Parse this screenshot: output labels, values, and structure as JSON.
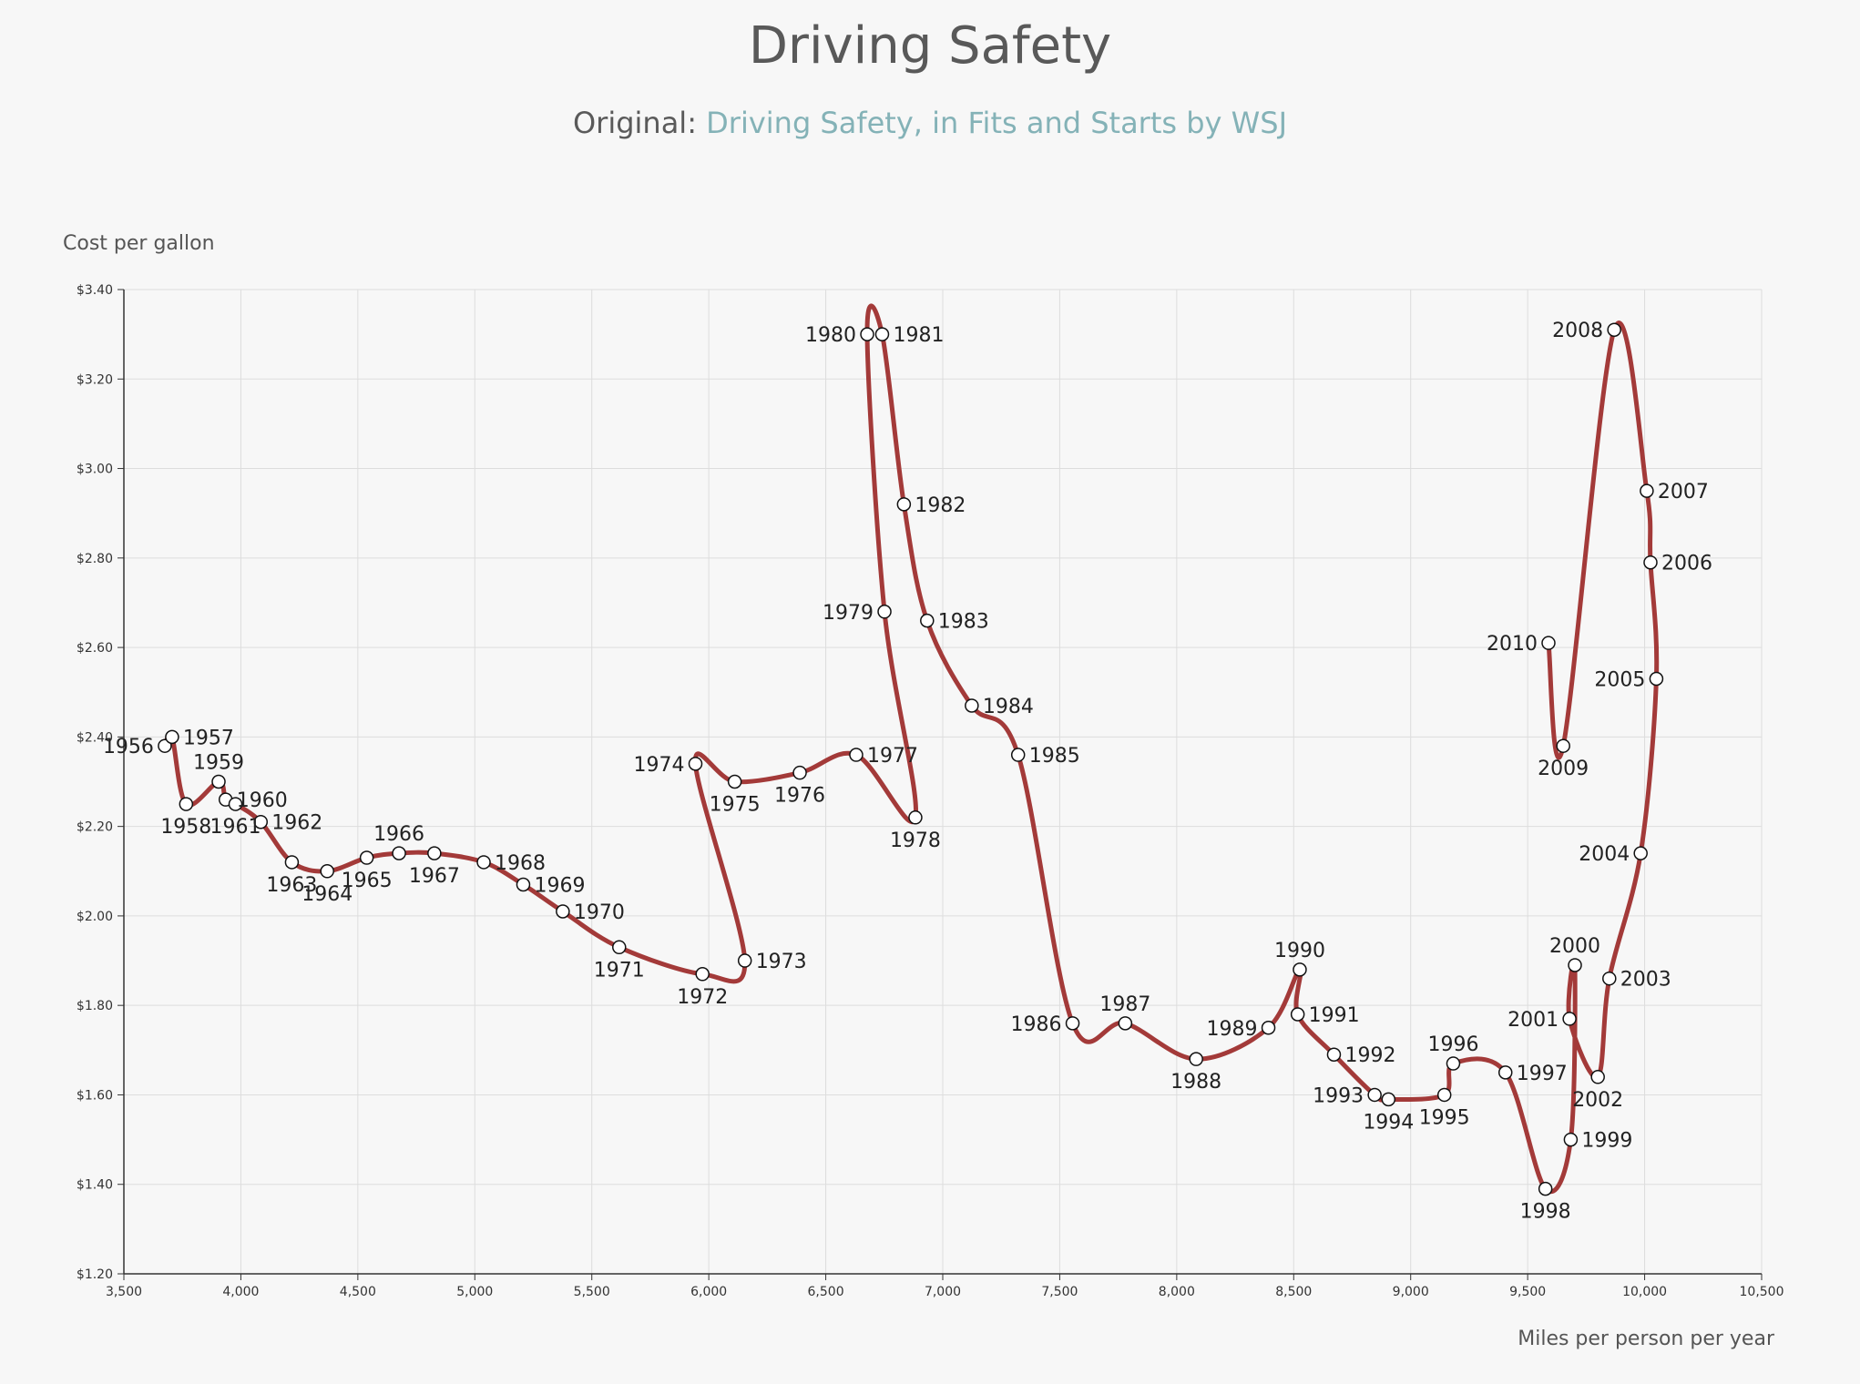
{
  "header": {
    "title": "Driving Safety",
    "subtitle_prefix": "Original:",
    "subtitle_link": "Driving Safety, in Fits and Starts by WSJ"
  },
  "colors": {
    "line": "#a33a39",
    "link": "#84b2b7",
    "grid": "#dddddd"
  },
  "chart_data": {
    "type": "line",
    "ylabel": "Cost per gallon",
    "xlabel": "Miles per person per year",
    "xlim": [
      3500,
      10500
    ],
    "ylim": [
      1.2,
      3.4
    ],
    "grid": true,
    "x_ticks": [
      "3,500",
      "4,000",
      "4,500",
      "5,000",
      "5,500",
      "6,000",
      "6,500",
      "7,000",
      "7,500",
      "8,000",
      "8,500",
      "9,000",
      "9,500",
      "10,000",
      "10,500"
    ],
    "y_ticks": [
      "$1.20",
      "$1.40",
      "$1.60",
      "$1.80",
      "$2.00",
      "$2.20",
      "$2.40",
      "$2.60",
      "$2.80",
      "$3.00",
      "$3.20",
      "$3.40"
    ],
    "points": [
      {
        "year": "1956",
        "x": 3675,
        "y": 2.38,
        "side": "left"
      },
      {
        "year": "1957",
        "x": 3706,
        "y": 2.4,
        "side": "right"
      },
      {
        "year": "1958",
        "x": 3766,
        "y": 2.25,
        "side": "bottom"
      },
      {
        "year": "1959",
        "x": 3905,
        "y": 2.3,
        "side": "top"
      },
      {
        "year": "1960",
        "x": 3935,
        "y": 2.26,
        "side": "right"
      },
      {
        "year": "1961",
        "x": 3977,
        "y": 2.25,
        "side": "bottom"
      },
      {
        "year": "1962",
        "x": 4085,
        "y": 2.21,
        "side": "right"
      },
      {
        "year": "1963",
        "x": 4218,
        "y": 2.12,
        "side": "bottom"
      },
      {
        "year": "1964",
        "x": 4369,
        "y": 2.1,
        "side": "bottom"
      },
      {
        "year": "1965",
        "x": 4538,
        "y": 2.13,
        "side": "bottom"
      },
      {
        "year": "1966",
        "x": 4676,
        "y": 2.14,
        "side": "top"
      },
      {
        "year": "1967",
        "x": 4827,
        "y": 2.14,
        "side": "bottom"
      },
      {
        "year": "1968",
        "x": 5038,
        "y": 2.12,
        "side": "right"
      },
      {
        "year": "1969",
        "x": 5207,
        "y": 2.07,
        "side": "right"
      },
      {
        "year": "1970",
        "x": 5376,
        "y": 2.01,
        "side": "right"
      },
      {
        "year": "1971",
        "x": 5617,
        "y": 1.93,
        "side": "bottom"
      },
      {
        "year": "1972",
        "x": 5973,
        "y": 1.87,
        "side": "bottom"
      },
      {
        "year": "1973",
        "x": 6154,
        "y": 1.9,
        "side": "right"
      },
      {
        "year": "1974",
        "x": 5943,
        "y": 2.34,
        "side": "left"
      },
      {
        "year": "1975",
        "x": 6111,
        "y": 2.3,
        "side": "bottom"
      },
      {
        "year": "1976",
        "x": 6389,
        "y": 2.32,
        "side": "bottom"
      },
      {
        "year": "1977",
        "x": 6630,
        "y": 2.36,
        "side": "right"
      },
      {
        "year": "1978",
        "x": 6883,
        "y": 2.22,
        "side": "bottom"
      },
      {
        "year": "1979",
        "x": 6751,
        "y": 2.68,
        "side": "left"
      },
      {
        "year": "1980",
        "x": 6677,
        "y": 3.3,
        "side": "left"
      },
      {
        "year": "1981",
        "x": 6741,
        "y": 3.3,
        "side": "right"
      },
      {
        "year": "1982",
        "x": 6834,
        "y": 2.92,
        "side": "right"
      },
      {
        "year": "1983",
        "x": 6933,
        "y": 2.66,
        "side": "right"
      },
      {
        "year": "1984",
        "x": 7124,
        "y": 2.47,
        "side": "right"
      },
      {
        "year": "1985",
        "x": 7322,
        "y": 2.36,
        "side": "right"
      },
      {
        "year": "1986",
        "x": 7555,
        "y": 1.76,
        "side": "left"
      },
      {
        "year": "1987",
        "x": 7780,
        "y": 1.76,
        "side": "top"
      },
      {
        "year": "1988",
        "x": 8083,
        "y": 1.68,
        "side": "bottom"
      },
      {
        "year": "1989",
        "x": 8392,
        "y": 1.75,
        "side": "left"
      },
      {
        "year": "1990",
        "x": 8526,
        "y": 1.88,
        "side": "top"
      },
      {
        "year": "1991",
        "x": 8517,
        "y": 1.78,
        "side": "right"
      },
      {
        "year": "1992",
        "x": 8672,
        "y": 1.69,
        "side": "right"
      },
      {
        "year": "1993",
        "x": 8846,
        "y": 1.6,
        "side": "left"
      },
      {
        "year": "1994",
        "x": 8905,
        "y": 1.59,
        "side": "bottom"
      },
      {
        "year": "1995",
        "x": 9144,
        "y": 1.6,
        "side": "bottom"
      },
      {
        "year": "1996",
        "x": 9182,
        "y": 1.67,
        "side": "top"
      },
      {
        "year": "1997",
        "x": 9405,
        "y": 1.65,
        "side": "right"
      },
      {
        "year": "1998",
        "x": 9576,
        "y": 1.39,
        "side": "bottom"
      },
      {
        "year": "1999",
        "x": 9684,
        "y": 1.5,
        "side": "right"
      },
      {
        "year": "2000",
        "x": 9702,
        "y": 1.89,
        "side": "top"
      },
      {
        "year": "2001",
        "x": 9679,
        "y": 1.77,
        "side": "left"
      },
      {
        "year": "2002",
        "x": 9800,
        "y": 1.64,
        "side": "bottom"
      },
      {
        "year": "2003",
        "x": 9849,
        "y": 1.86,
        "side": "right"
      },
      {
        "year": "2004",
        "x": 9983,
        "y": 2.14,
        "side": "left"
      },
      {
        "year": "2005",
        "x": 10050,
        "y": 2.53,
        "side": "left"
      },
      {
        "year": "2006",
        "x": 10025,
        "y": 2.79,
        "side": "right"
      },
      {
        "year": "2007",
        "x": 10009,
        "y": 2.95,
        "side": "right"
      },
      {
        "year": "2008",
        "x": 9870,
        "y": 3.31,
        "side": "left"
      },
      {
        "year": "2009",
        "x": 9652,
        "y": 2.38,
        "side": "bottom"
      },
      {
        "year": "2010",
        "x": 9589,
        "y": 2.61,
        "side": "left"
      }
    ]
  }
}
